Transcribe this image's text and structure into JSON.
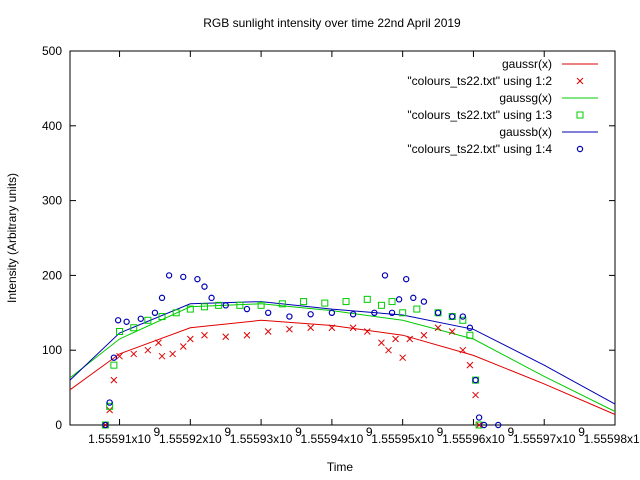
{
  "chart_data": {
    "type": "scatter",
    "title": "RGB sunlight intensity over time 22nd April 2019",
    "xlabel": "Time",
    "ylabel": "Intensity (Arbitrary units)",
    "xlim": [
      1555903000,
      1555980000
    ],
    "ylim": [
      0,
      500
    ],
    "xticks": [
      1555910000,
      1555920000,
      1555930000,
      1555940000,
      1555950000,
      1555960000,
      1555970000,
      1555980000
    ],
    "xtick_labels": [
      "1.55591x10",
      "1.55592x10",
      "1.55593x10",
      "1.55594x10",
      "1.55595x10",
      "1.55596x10",
      "1.55597x10",
      "1.55598x10"
    ],
    "xtick_exponent": "9",
    "yticks": [
      0,
      100,
      200,
      300,
      400,
      500
    ],
    "ytick_labels": [
      "0",
      "100",
      "200",
      "300",
      "400",
      "500"
    ],
    "grid": false,
    "legend_position": "top-right",
    "fits": [
      {
        "name": "gaussr(x)",
        "color": "#e00000",
        "points": [
          [
            1555903000,
            47
          ],
          [
            1555910000,
            95
          ],
          [
            1555920000,
            130
          ],
          [
            1555930000,
            140
          ],
          [
            1555940000,
            133
          ],
          [
            1555950000,
            120
          ],
          [
            1555960000,
            93
          ],
          [
            1555970000,
            55
          ],
          [
            1555980000,
            14
          ]
        ]
      },
      {
        "name": "gaussg(x)",
        "color": "#00cc00",
        "points": [
          [
            1555903000,
            63
          ],
          [
            1555910000,
            115
          ],
          [
            1555920000,
            158
          ],
          [
            1555930000,
            162
          ],
          [
            1555940000,
            153
          ],
          [
            1555950000,
            140
          ],
          [
            1555960000,
            115
          ],
          [
            1555970000,
            65
          ],
          [
            1555980000,
            18
          ]
        ]
      },
      {
        "name": "gaussb(x)",
        "color": "#0000b4",
        "points": [
          [
            1555903000,
            60
          ],
          [
            1555910000,
            123
          ],
          [
            1555920000,
            162
          ],
          [
            1555930000,
            165
          ],
          [
            1555940000,
            155
          ],
          [
            1555950000,
            147
          ],
          [
            1555960000,
            128
          ],
          [
            1555970000,
            80
          ],
          [
            1555980000,
            28
          ]
        ]
      }
    ],
    "series": [
      {
        "name": "\"colours_ts22.txt\" using 1:2",
        "marker": "cross",
        "color": "#e00000",
        "points": [
          [
            1555908000,
            0
          ],
          [
            1555908600,
            20
          ],
          [
            1555909200,
            60
          ],
          [
            1555910000,
            92
          ],
          [
            1555912000,
            95
          ],
          [
            1555914000,
            100
          ],
          [
            1555915500,
            110
          ],
          [
            1555916000,
            92
          ],
          [
            1555917500,
            95
          ],
          [
            1555919000,
            105
          ],
          [
            1555920000,
            115
          ],
          [
            1555922000,
            120
          ],
          [
            1555925000,
            118
          ],
          [
            1555928000,
            120
          ],
          [
            1555931000,
            125
          ],
          [
            1555934000,
            128
          ],
          [
            1555937000,
            130
          ],
          [
            1555940000,
            130
          ],
          [
            1555943000,
            130
          ],
          [
            1555945000,
            125
          ],
          [
            1555947000,
            110
          ],
          [
            1555948000,
            100
          ],
          [
            1555949000,
            115
          ],
          [
            1555950000,
            90
          ],
          [
            1555951000,
            115
          ],
          [
            1555953000,
            120
          ],
          [
            1555955000,
            130
          ],
          [
            1555957000,
            125
          ],
          [
            1555958500,
            100
          ],
          [
            1555959500,
            80
          ],
          [
            1555960300,
            40
          ],
          [
            1555960800,
            0
          ]
        ]
      },
      {
        "name": "\"colours_ts22.txt\" using 1:3",
        "marker": "square",
        "color": "#00cc00",
        "points": [
          [
            1555908000,
            0
          ],
          [
            1555908600,
            25
          ],
          [
            1555909200,
            80
          ],
          [
            1555910000,
            125
          ],
          [
            1555912000,
            130
          ],
          [
            1555914000,
            140
          ],
          [
            1555916000,
            145
          ],
          [
            1555918000,
            150
          ],
          [
            1555920000,
            155
          ],
          [
            1555922000,
            158
          ],
          [
            1555924000,
            160
          ],
          [
            1555927000,
            160
          ],
          [
            1555930000,
            160
          ],
          [
            1555933000,
            162
          ],
          [
            1555936000,
            165
          ],
          [
            1555939000,
            163
          ],
          [
            1555942000,
            165
          ],
          [
            1555945000,
            168
          ],
          [
            1555947000,
            160
          ],
          [
            1555948500,
            165
          ],
          [
            1555950000,
            150
          ],
          [
            1555952000,
            155
          ],
          [
            1555955000,
            150
          ],
          [
            1555957000,
            145
          ],
          [
            1555958500,
            140
          ],
          [
            1555959500,
            120
          ],
          [
            1555960300,
            60
          ],
          [
            1555960800,
            0
          ]
        ]
      },
      {
        "name": "\"colours_ts22.txt\" using 1:4",
        "marker": "circle",
        "color": "#0000b4",
        "points": [
          [
            1555908000,
            0
          ],
          [
            1555908600,
            30
          ],
          [
            1555909200,
            90
          ],
          [
            1555909800,
            140
          ],
          [
            1555911000,
            138
          ],
          [
            1555913000,
            142
          ],
          [
            1555915000,
            150
          ],
          [
            1555916000,
            170
          ],
          [
            1555917000,
            200
          ],
          [
            1555919000,
            198
          ],
          [
            1555921000,
            195
          ],
          [
            1555922000,
            185
          ],
          [
            1555923000,
            170
          ],
          [
            1555925000,
            160
          ],
          [
            1555928000,
            155
          ],
          [
            1555931000,
            150
          ],
          [
            1555934000,
            145
          ],
          [
            1555937000,
            148
          ],
          [
            1555940000,
            150
          ],
          [
            1555943000,
            148
          ],
          [
            1555946000,
            150
          ],
          [
            1555947500,
            200
          ],
          [
            1555948500,
            150
          ],
          [
            1555949500,
            168
          ],
          [
            1555950500,
            195
          ],
          [
            1555951500,
            170
          ],
          [
            1555953000,
            165
          ],
          [
            1555955000,
            150
          ],
          [
            1555957000,
            145
          ],
          [
            1555958500,
            145
          ],
          [
            1555959500,
            130
          ],
          [
            1555960300,
            60
          ],
          [
            1555960800,
            10
          ],
          [
            1555961500,
            0
          ],
          [
            1555963500,
            0
          ]
        ]
      }
    ]
  }
}
